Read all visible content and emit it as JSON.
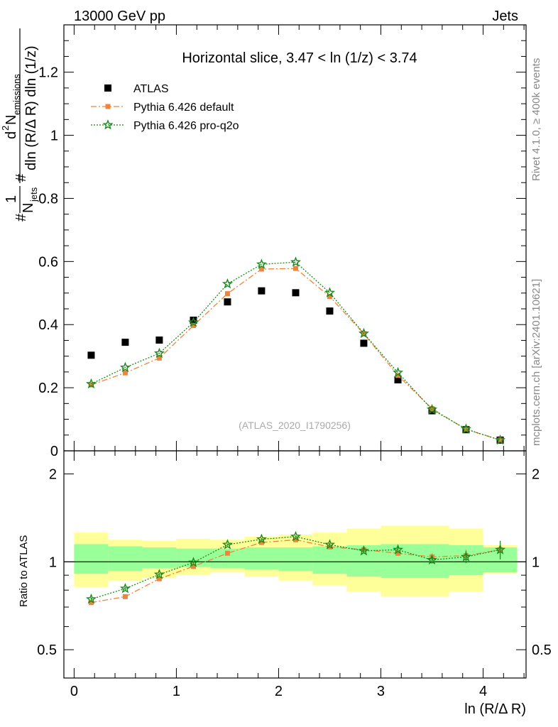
{
  "header": {
    "left": "13000 GeV pp",
    "right": "Jets"
  },
  "side_labels": {
    "rivet": "Rivet 4.1.0, ≥ 400k events",
    "mcplots": "mcplots.cern.ch [arXiv:2401.10621]"
  },
  "chart_data": {
    "type": "scatter",
    "title": "Horizontal slice, 3.47 < ln (1/z) < 3.74",
    "analysis_label": "(ATLAS_2020_I1790256)",
    "xlabel": "ln (R/Δ R)",
    "ylabel": {
      "numerator_pre": "1",
      "n_jets": "N",
      "n_jets_sub": "jets",
      "d2": "d",
      "d2_sup": "2",
      "n_em": "N",
      "n_em_sub": "emissions",
      "denominator": "dln (R/Δ R) dln (1/z)",
      "hash": "#"
    },
    "ratio_ylabel": "Ratio to ATLAS",
    "xlim": [
      -0.1,
      4.42
    ],
    "ylim": [
      0,
      1.35
    ],
    "ratio_ylim": [
      0.4,
      2.4
    ],
    "x_ticks": [
      0,
      1,
      2,
      3,
      4
    ],
    "x_tick_labels": [
      "0",
      "1",
      "2",
      "3",
      "4"
    ],
    "y_ticks": [
      0,
      0.2,
      0.4,
      0.6,
      0.8,
      1,
      1.2
    ],
    "y_tick_labels": [
      "0",
      "0.2",
      "0.4",
      "0.6",
      "0.8",
      "1",
      "1.2"
    ],
    "ratio_ticks": [
      0.5,
      1,
      2
    ],
    "ratio_tick_labels": [
      "0.5",
      "1",
      "2"
    ],
    "ratio_tick_labels_right": [
      "0.5",
      "1",
      "2"
    ],
    "bin_edges": [
      0,
      0.333,
      0.667,
      1.0,
      1.333,
      1.667,
      2.0,
      2.333,
      2.667,
      3.0,
      3.333,
      3.667,
      4.0,
      4.333
    ],
    "x": [
      0.167,
      0.5,
      0.833,
      1.167,
      1.5,
      1.833,
      2.167,
      2.5,
      2.833,
      3.167,
      3.5,
      3.833,
      4.167
    ],
    "band_inner": [
      [
        0.91,
        1.15
      ],
      [
        0.93,
        1.13
      ],
      [
        0.95,
        1.12
      ],
      [
        0.96,
        1.11
      ],
      [
        0.95,
        1.11
      ],
      [
        0.94,
        1.12
      ],
      [
        0.93,
        1.12
      ],
      [
        0.91,
        1.13
      ],
      [
        0.89,
        1.14
      ],
      [
        0.88,
        1.15
      ],
      [
        0.88,
        1.15
      ],
      [
        0.9,
        1.14
      ],
      [
        0.92,
        1.12
      ]
    ],
    "band_outer": [
      [
        0.82,
        1.26
      ],
      [
        0.86,
        1.19
      ],
      [
        0.88,
        1.18
      ],
      [
        0.9,
        1.2
      ],
      [
        0.92,
        1.19
      ],
      [
        0.89,
        1.22
      ],
      [
        0.86,
        1.24
      ],
      [
        0.83,
        1.26
      ],
      [
        0.79,
        1.3
      ],
      [
        0.76,
        1.33
      ],
      [
        0.76,
        1.33
      ],
      [
        0.79,
        1.3
      ],
      [
        0.91,
        1.14
      ]
    ],
    "series": [
      {
        "name": "ATLAS",
        "marker": "square",
        "color": "#000000",
        "values": [
          0.303,
          0.344,
          0.351,
          0.414,
          0.472,
          0.507,
          0.501,
          0.443,
          0.341,
          0.225,
          0.127,
          0.067,
          0.034
        ]
      },
      {
        "name": "Pythia 6.426 default",
        "marker": "circle",
        "line": "dashdot",
        "color": "#f0843c",
        "values": [
          0.209,
          0.247,
          0.294,
          0.397,
          0.498,
          0.576,
          0.578,
          0.489,
          0.371,
          0.239,
          0.134,
          0.068,
          0.034
        ],
        "ratio": [
          0.725,
          0.76,
          0.875,
          0.965,
          1.07,
          1.165,
          1.19,
          1.125,
          1.1,
          1.07,
          1.04,
          1.05,
          1.1
        ],
        "ratio_err": [
          0.01,
          0.01,
          0.01,
          0.01,
          0.01,
          0.01,
          0.01,
          0.015,
          0.02,
          0.02,
          0.03,
          0.05,
          0.08
        ]
      },
      {
        "name": "Pythia 6.426 pro-q2o",
        "marker": "star",
        "line": "dotted",
        "color": "#1a8a1a",
        "values": [
          0.212,
          0.264,
          0.309,
          0.407,
          0.529,
          0.591,
          0.598,
          0.501,
          0.372,
          0.248,
          0.131,
          0.069,
          0.034
        ],
        "ratio": [
          0.745,
          0.81,
          0.905,
          0.995,
          1.145,
          1.195,
          1.22,
          1.145,
          1.09,
          1.1,
          1.015,
          1.04,
          1.1
        ],
        "ratio_err": [
          0.01,
          0.01,
          0.01,
          0.01,
          0.01,
          0.01,
          0.01,
          0.015,
          0.02,
          0.02,
          0.03,
          0.05,
          0.08
        ]
      }
    ]
  }
}
